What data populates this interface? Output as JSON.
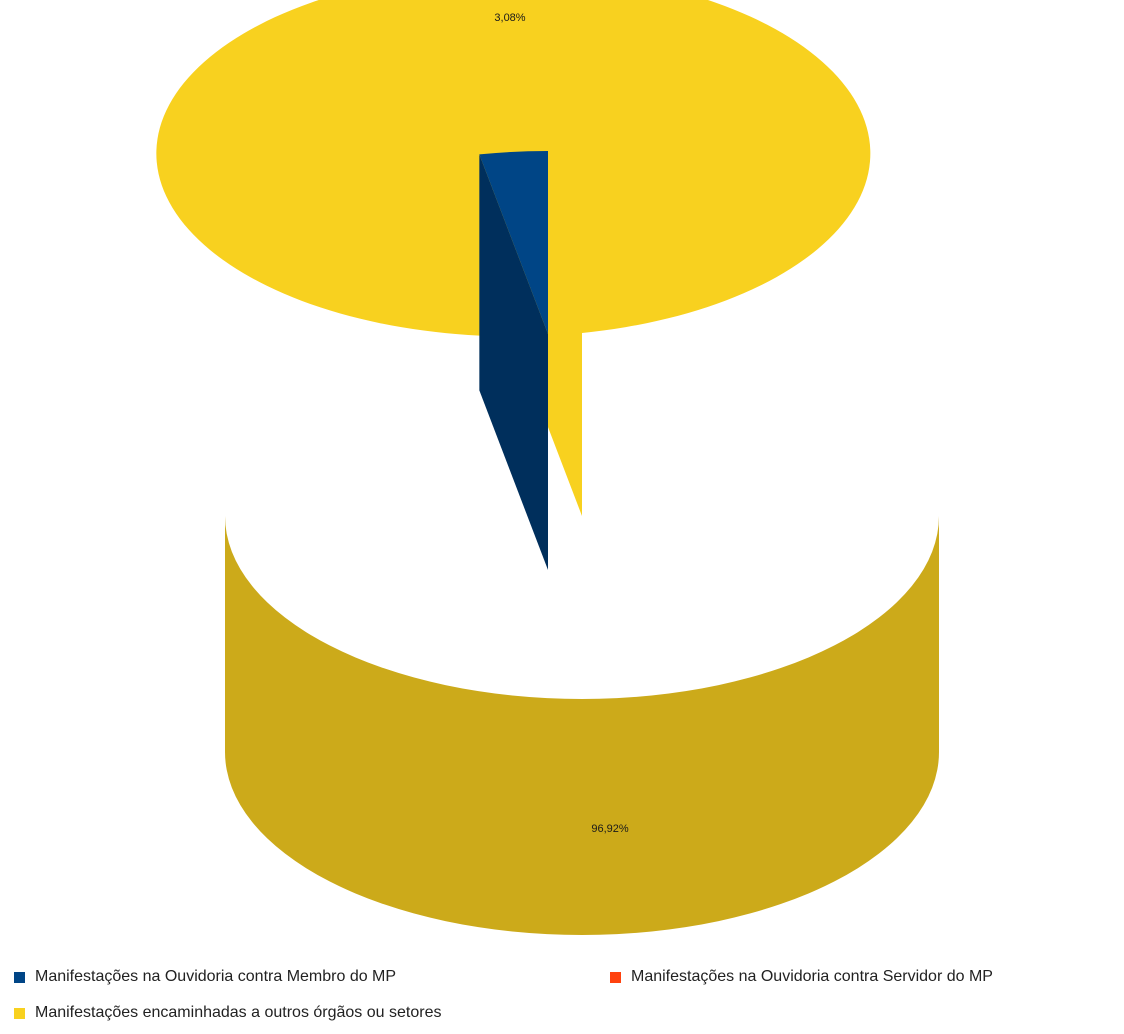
{
  "chart_data": {
    "type": "pie",
    "style": "3d-exploded",
    "title": "",
    "series": [
      {
        "name": "Manifestações na Ouvidoria contra Membro do MP",
        "value": 3.08,
        "label": "3,08%",
        "color": "#004586",
        "side_color": "#002f5c"
      },
      {
        "name": "Manifestações na Ouvidoria contra Servidor do MP",
        "value": 0,
        "label": "",
        "color": "#ff420e",
        "side_color": "#c2320b"
      },
      {
        "name": "Manifestações encaminhadas a outros órgãos ou setores",
        "value": 96.92,
        "label": "96,92%",
        "color": "#f8d11f",
        "side_color": "#ccaa1a"
      }
    ],
    "legend_position": "bottom"
  }
}
